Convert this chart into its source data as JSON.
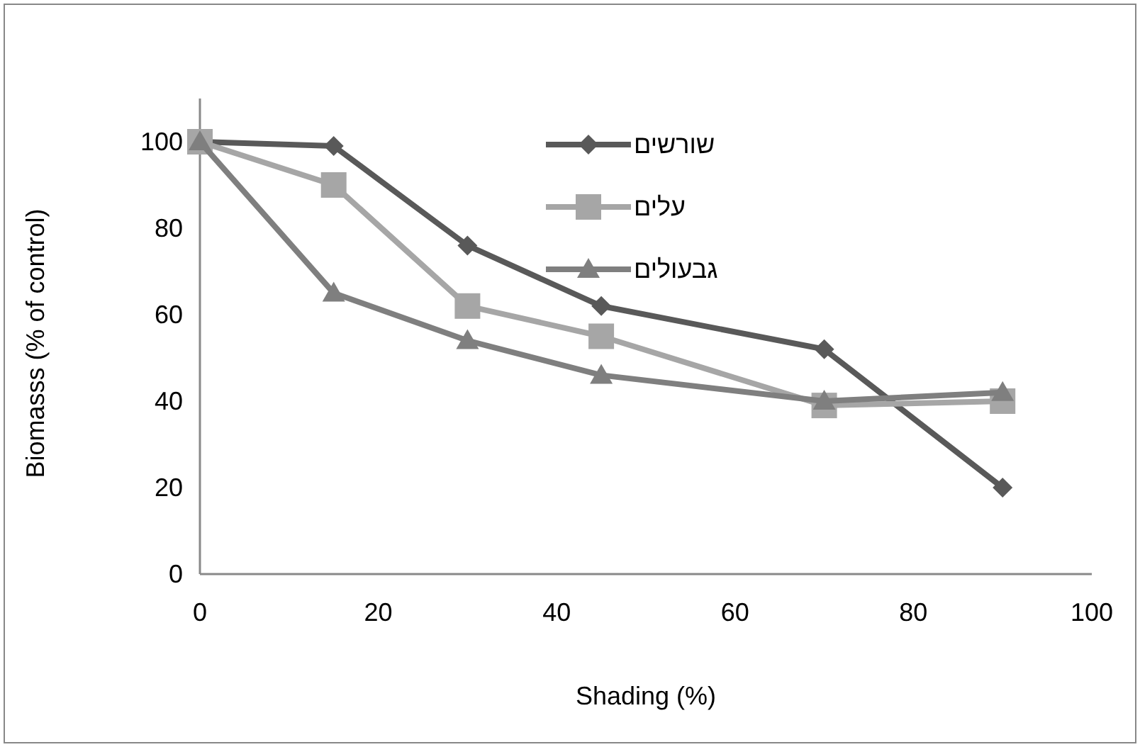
{
  "chart_data": {
    "type": "line",
    "xlabel": "Shading (%)",
    "ylabel": "Biomasss (% of control)",
    "x": [
      0,
      15,
      30,
      45,
      70,
      90
    ],
    "series": [
      {
        "name": "שורשים",
        "color": "#595959",
        "marker": "diamond",
        "values": [
          100,
          99,
          76,
          62,
          52,
          20
        ]
      },
      {
        "name": "עלים",
        "color": "#a6a6a6",
        "marker": "square",
        "values": [
          100,
          90,
          62,
          55,
          39,
          40
        ]
      },
      {
        "name": "גבעולים",
        "color": "#7f7f7f",
        "marker": "triangle",
        "values": [
          100,
          65,
          54,
          46,
          40,
          42
        ]
      }
    ],
    "xlim": [
      0,
      100
    ],
    "xticks": [
      0,
      20,
      40,
      60,
      80,
      100
    ],
    "ylim": [
      0,
      110
    ],
    "yticks": [
      0,
      20,
      40,
      60,
      80,
      100
    ],
    "grid": false,
    "legend": "top right",
    "line_style": "solid"
  }
}
